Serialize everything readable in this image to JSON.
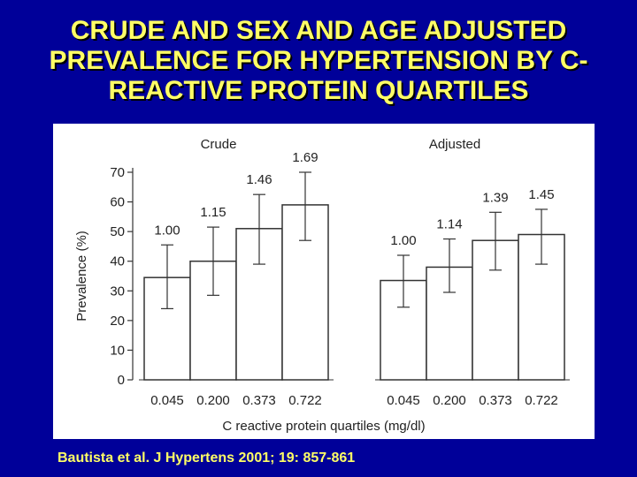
{
  "slide": {
    "title_lines": [
      "CRUDE AND  SEX AND AGE ADJUSTED",
      "PREVALENCE  FOR HYPERTENSION BY C-",
      "REACTIVE  PROTEIN QUARTILES"
    ],
    "citation": "Bautista et al. J Hypertens 2001; 19: 857-861"
  },
  "colors": {
    "background": "#000099",
    "title": "#ffff66",
    "panel": "#ffffff",
    "bar_fill": "#ffffff",
    "bar_stroke": "#333333"
  },
  "chart_data": {
    "type": "bar",
    "xlabel": "C reactive protein quartiles (mg/dl)",
    "ylabel": "Prevalence (%)",
    "ylim": [
      0,
      70
    ],
    "yticks": [
      0,
      10,
      20,
      30,
      40,
      50,
      60,
      70
    ],
    "categories": [
      "0.045",
      "0.200",
      "0.373",
      "0.722"
    ],
    "grid": false,
    "series": [
      {
        "name": "Crude",
        "values": [
          34.5,
          40,
          51,
          59
        ],
        "error_low": [
          24,
          28.5,
          39,
          47
        ],
        "error_high": [
          45.5,
          51.5,
          62.5,
          70
        ],
        "labels": [
          "1.00",
          "1.15",
          "1.46",
          "1.69"
        ]
      },
      {
        "name": "Adjusted",
        "values": [
          33.5,
          38,
          47,
          49
        ],
        "error_low": [
          24.5,
          29.5,
          37,
          39
        ],
        "error_high": [
          42,
          47.5,
          56.5,
          57.5
        ],
        "labels": [
          "1.00",
          "1.14",
          "1.39",
          "1.45"
        ]
      }
    ]
  }
}
